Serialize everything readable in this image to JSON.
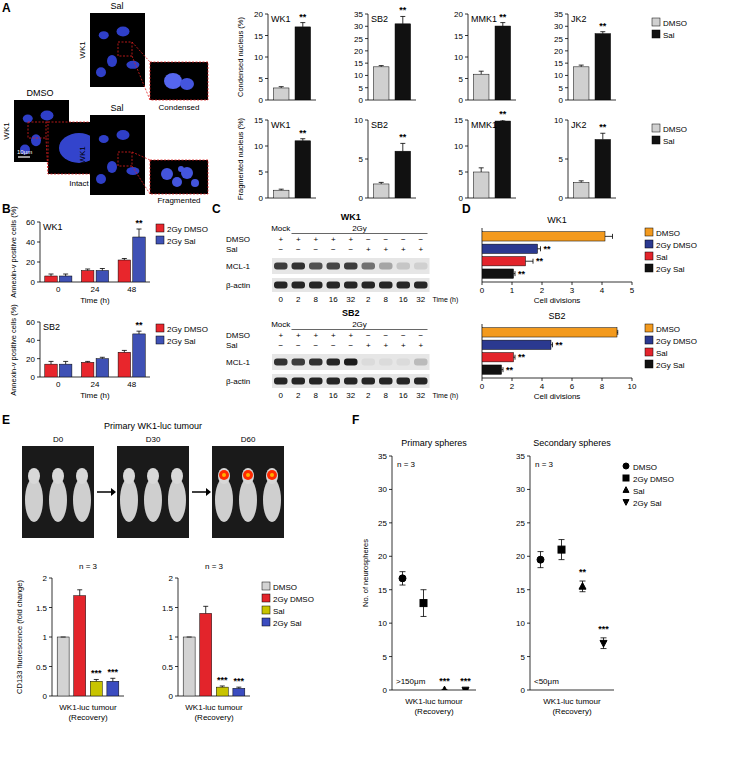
{
  "panel_labels": [
    "A",
    "B",
    "C",
    "D",
    "E",
    "F"
  ],
  "panel_a_images": [
    {
      "condition": "DMSO",
      "cell_line": "WK1",
      "zoom_label": "Intact",
      "scale_bar": "10μm"
    },
    {
      "condition": "Sal",
      "cell_line": "WK1",
      "zoom_label": "Condensed"
    },
    {
      "condition": "Sal",
      "cell_line": "WK1",
      "zoom_label": "Fragmented"
    }
  ],
  "panel_c_blots": [
    {
      "title": "WK1",
      "groups": [
        "Mock",
        "2Gy"
      ],
      "rows": [
        {
          "label": "DMSO",
          "signs": [
            "+",
            "+",
            "+",
            "+",
            "+",
            "−",
            "−",
            "−",
            "−"
          ]
        },
        {
          "label": "Sal",
          "signs": [
            "−",
            "−",
            "−",
            "−",
            "−",
            "+",
            "+",
            "+",
            "+"
          ]
        }
      ],
      "bands": [
        {
          "label": "MCL-1",
          "intensity": [
            0.8,
            0.85,
            0.7,
            0.75,
            0.8,
            0.55,
            0.3,
            0.15,
            0.1
          ]
        },
        {
          "label": "β-actin",
          "intensity": [
            0.9,
            0.9,
            0.9,
            0.9,
            0.9,
            0.9,
            0.9,
            0.9,
            0.9
          ]
        }
      ],
      "times": [
        0,
        2,
        8,
        16,
        32,
        2,
        8,
        16,
        32
      ],
      "time_label": "Time (h)"
    },
    {
      "title": "SB2",
      "groups": [
        "Mock",
        "2Gy"
      ],
      "rows": [
        {
          "label": "DMSO",
          "signs": [
            "+",
            "+",
            "+",
            "+",
            "+",
            "−",
            "−",
            "−",
            "−"
          ]
        },
        {
          "label": "Sal",
          "signs": [
            "−",
            "−",
            "−",
            "−",
            "−",
            "+",
            "+",
            "+",
            "+"
          ]
        }
      ],
      "bands": [
        {
          "label": "MCL-1",
          "intensity": [
            0.85,
            0.8,
            0.85,
            0.9,
            0.95,
            0.05,
            0.05,
            0.05,
            0.2
          ]
        },
        {
          "label": "β-actin",
          "intensity": [
            0.9,
            0.9,
            0.9,
            0.9,
            0.9,
            0.9,
            0.9,
            0.9,
            0.9
          ]
        }
      ],
      "times": [
        0,
        2,
        8,
        16,
        32,
        2,
        8,
        16,
        32
      ],
      "time_label": "Time (h)"
    }
  ],
  "panel_e_images": {
    "title": "Primary WK1-luc tumour",
    "days": [
      "D0",
      "D30",
      "D60"
    ]
  },
  "chart_data": [
    {
      "type": "bar",
      "title": "WK1",
      "y_label": "Condensed nucleus (%)",
      "categories": [
        null
      ],
      "ylim": [
        0,
        20
      ],
      "yticks": [
        0,
        5,
        10,
        15,
        20
      ],
      "series": [
        {
          "color": "#d0d0d0",
          "values": [
            2.8
          ],
          "errors": [
            0.3
          ],
          "significance": [
            null
          ]
        },
        {
          "color": "#111111",
          "values": [
            17
          ],
          "errors": [
            1
          ],
          "significance": [
            "**"
          ]
        }
      ]
    },
    {
      "type": "bar",
      "title": "SB2",
      "categories": [
        null
      ],
      "ylim": [
        0,
        35
      ],
      "yticks": [
        0,
        5,
        10,
        15,
        20,
        25,
        30,
        35
      ],
      "series": [
        {
          "color": "#d0d0d0",
          "values": [
            13.5
          ],
          "errors": [
            0.5
          ],
          "significance": [
            null
          ]
        },
        {
          "color": "#111111",
          "values": [
            31
          ],
          "errors": [
            3
          ],
          "significance": [
            "**"
          ]
        }
      ]
    },
    {
      "type": "bar",
      "title": "MMK1",
      "categories": [
        null
      ],
      "ylim": [
        0,
        20
      ],
      "yticks": [
        0,
        5,
        10,
        15,
        20
      ],
      "series": [
        {
          "color": "#d0d0d0",
          "values": [
            6
          ],
          "errors": [
            0.7
          ],
          "significance": [
            null
          ]
        },
        {
          "color": "#111111",
          "values": [
            17.2
          ],
          "errors": [
            0.8
          ],
          "significance": [
            "**"
          ]
        }
      ]
    },
    {
      "type": "bar",
      "title": "JK2",
      "categories": [
        null
      ],
      "ylim": [
        0,
        35
      ],
      "yticks": [
        0,
        5,
        10,
        15,
        20,
        25,
        30,
        35
      ],
      "legend": "right",
      "series": [
        {
          "name": "DMSO",
          "color": "#d0d0d0",
          "values": [
            13.5
          ],
          "errors": [
            0.7
          ],
          "significance": [
            null
          ]
        },
        {
          "name": "Sal",
          "color": "#111111",
          "values": [
            27
          ],
          "errors": [
            0.8
          ],
          "significance": [
            "**"
          ]
        }
      ]
    },
    {
      "type": "bar",
      "title": "WK1",
      "y_label": "Fragmented nucleus (%)",
      "categories": [
        null
      ],
      "ylim": [
        0,
        15
      ],
      "yticks": [
        0,
        5,
        10,
        15
      ],
      "series": [
        {
          "color": "#d0d0d0",
          "values": [
            1.5
          ],
          "errors": [
            0.2
          ],
          "significance": [
            null
          ]
        },
        {
          "color": "#111111",
          "values": [
            11
          ],
          "errors": [
            0.4
          ],
          "significance": [
            "**"
          ]
        }
      ]
    },
    {
      "type": "bar",
      "title": "SB2",
      "categories": [
        null
      ],
      "ylim": [
        0,
        10
      ],
      "yticks": [
        0,
        5,
        10
      ],
      "series": [
        {
          "color": "#d0d0d0",
          "values": [
            1.8
          ],
          "errors": [
            0.2
          ],
          "significance": [
            null
          ]
        },
        {
          "color": "#111111",
          "values": [
            6
          ],
          "errors": [
            1
          ],
          "significance": [
            "**"
          ]
        }
      ]
    },
    {
      "type": "bar",
      "title": "MMK1",
      "categories": [
        null
      ],
      "ylim": [
        0,
        15
      ],
      "yticks": [
        0,
        5,
        10,
        15
      ],
      "series": [
        {
          "color": "#d0d0d0",
          "values": [
            5
          ],
          "errors": [
            0.8
          ],
          "significance": [
            null
          ]
        },
        {
          "color": "#111111",
          "values": [
            14.8
          ],
          "errors": [
            0.2
          ],
          "significance": [
            "**"
          ]
        }
      ]
    },
    {
      "type": "bar",
      "title": "JK2",
      "categories": [
        null
      ],
      "ylim": [
        0,
        10
      ],
      "yticks": [
        0,
        5,
        10
      ],
      "legend": "right",
      "series": [
        {
          "name": "DMSO",
          "color": "#d0d0d0",
          "values": [
            2
          ],
          "errors": [
            0.2
          ],
          "significance": [
            null
          ]
        },
        {
          "name": "Sal",
          "color": "#111111",
          "values": [
            7.5
          ],
          "errors": [
            0.8
          ],
          "significance": [
            "**"
          ]
        }
      ]
    },
    {
      "type": "bar",
      "title": "WK1",
      "y_label": "Annexin-v positive cells (%)",
      "x_label": "Time (h)",
      "categories": [
        "0",
        "24",
        "48"
      ],
      "ylim": [
        0,
        60
      ],
      "yticks": [
        0,
        20,
        40,
        60
      ],
      "legend": "right",
      "series": [
        {
          "name": "2Gy DMSO",
          "color": "#e8262c",
          "values": [
            6,
            11.5,
            22
          ],
          "errors": [
            2,
            1.5,
            1.5
          ],
          "significance": [
            null,
            null,
            null
          ]
        },
        {
          "name": "2Gy Sal",
          "color": "#3f51b5",
          "values": [
            6,
            11.5,
            45
          ],
          "errors": [
            2,
            2,
            8
          ],
          "significance": [
            null,
            null,
            "**"
          ]
        }
      ]
    },
    {
      "type": "bar",
      "title": "SB2",
      "y_label": "Annexin-v positive cells (%)",
      "x_label": "Time (h)",
      "categories": [
        "0",
        "24",
        "48"
      ],
      "ylim": [
        0,
        60
      ],
      "yticks": [
        0,
        20,
        40,
        60
      ],
      "legend": "right",
      "series": [
        {
          "name": "2Gy DMSO",
          "color": "#e8262c",
          "values": [
            14,
            16,
            27
          ],
          "errors": [
            3,
            1,
            2
          ],
          "significance": [
            null,
            null,
            null
          ]
        },
        {
          "name": "2Gy Sal",
          "color": "#3f51b5",
          "values": [
            14,
            20,
            47
          ],
          "errors": [
            3,
            1.5,
            3
          ],
          "significance": [
            null,
            null,
            "**"
          ]
        }
      ]
    },
    {
      "type": "bar",
      "orientation": "horizontal",
      "title": "WK1",
      "x_label": "Cell divisions",
      "categories": [
        null
      ],
      "xlim": [
        0,
        5
      ],
      "xticks": [
        0,
        1,
        2,
        3,
        4,
        5
      ],
      "legend": "right",
      "series": [
        {
          "name": "DMSO",
          "color": "#f39a1e",
          "values": [
            4.1
          ],
          "errors": [
            0.25
          ],
          "significance": [
            null
          ]
        },
        {
          "name": "2Gy DMSO",
          "color": "#2b3990",
          "values": [
            1.85
          ],
          "errors": [
            0.1
          ],
          "significance": [
            "**"
          ]
        },
        {
          "name": "Sal",
          "color": "#e3242b",
          "values": [
            1.45
          ],
          "errors": [
            0.25
          ],
          "significance": [
            "**"
          ]
        },
        {
          "name": "2Gy Sal",
          "color": "#111111",
          "values": [
            1.05
          ],
          "errors": [
            0.05
          ],
          "significance": [
            "**"
          ]
        }
      ]
    },
    {
      "type": "bar",
      "orientation": "horizontal",
      "title": "SB2",
      "x_label": "Cell divisions",
      "categories": [
        null
      ],
      "xlim": [
        0,
        10
      ],
      "xticks": [
        0,
        2,
        4,
        6,
        8,
        10
      ],
      "legend": "right",
      "series": [
        {
          "name": "DMSO",
          "color": "#f39a1e",
          "values": [
            9
          ],
          "errors": [
            0.05
          ],
          "significance": [
            null
          ]
        },
        {
          "name": "2Gy DMSO",
          "color": "#2b3990",
          "values": [
            4.6
          ],
          "errors": [
            0.1
          ],
          "significance": [
            "**"
          ]
        },
        {
          "name": "Sal",
          "color": "#e3242b",
          "values": [
            2.1
          ],
          "errors": [
            0.1
          ],
          "significance": [
            "**"
          ]
        },
        {
          "name": "2Gy Sal",
          "color": "#111111",
          "values": [
            1.3
          ],
          "errors": [
            0.1
          ],
          "significance": [
            "**"
          ]
        }
      ]
    },
    {
      "type": "bar",
      "y_label": "CD133 fluorescence (fold change)",
      "x_label": "WK1-luc tumour\n(Recovery)",
      "annotations": [
        "n = 3"
      ],
      "categories": [
        null
      ],
      "ylim": [
        0,
        2
      ],
      "yticks": [
        0,
        0.5,
        1,
        1.5,
        2
      ],
      "series": [
        {
          "color": "#d3d3d3",
          "values": [
            1
          ],
          "errors": [
            0
          ],
          "significance": [
            null
          ]
        },
        {
          "color": "#e3242b",
          "values": [
            1.7
          ],
          "errors": [
            0.1
          ],
          "significance": [
            null
          ]
        },
        {
          "color": "#c8c400",
          "values": [
            0.25
          ],
          "errors": [
            0.03
          ],
          "significance": [
            "***"
          ]
        },
        {
          "color": "#3b4cc0",
          "values": [
            0.25
          ],
          "errors": [
            0.05
          ],
          "significance": [
            "***"
          ]
        }
      ]
    },
    {
      "type": "bar",
      "x_label": "WK1-luc tumour\n(Recovery)",
      "annotations": [
        "n = 3"
      ],
      "categories": [
        null
      ],
      "ylim": [
        0,
        2
      ],
      "yticks": [
        0,
        0.5,
        1,
        1.5,
        2
      ],
      "legend": "right",
      "series": [
        {
          "name": "DMSO",
          "color": "#d3d3d3",
          "values": [
            1
          ],
          "errors": [
            0
          ],
          "significance": [
            null
          ]
        },
        {
          "name": "2Gy DMSO",
          "color": "#e3242b",
          "values": [
            1.4
          ],
          "errors": [
            0.12
          ],
          "significance": [
            null
          ]
        },
        {
          "name": "Sal",
          "color": "#c8c400",
          "values": [
            0.15
          ],
          "errors": [
            0.02
          ],
          "significance": [
            "***"
          ]
        },
        {
          "name": "2Gy Sal",
          "color": "#3b4cc0",
          "values": [
            0.13
          ],
          "errors": [
            0.02
          ],
          "significance": [
            "***"
          ]
        }
      ]
    },
    {
      "type": "scatter",
      "title": "Primary spheres",
      "y_label": "No. of neurospheres",
      "x_label": "WK1-luc tumour\n(Recovery)",
      "annotations": [
        "n = 3",
        ">150μm"
      ],
      "categories": [
        null
      ],
      "ylim": [
        0,
        35
      ],
      "yticks": [
        0,
        5,
        10,
        15,
        20,
        25,
        30,
        35
      ],
      "series": [
        {
          "marker": "circle",
          "color": "#000000",
          "values": [
            16.7
          ],
          "errors": [
            1
          ],
          "significance": [
            null
          ]
        },
        {
          "marker": "square",
          "color": "#000000",
          "values": [
            13
          ],
          "errors": [
            2
          ],
          "significance": [
            null
          ]
        },
        {
          "marker": "triangle",
          "color": "#000000",
          "values": [
            0
          ],
          "errors": [
            0
          ],
          "significance": [
            "***"
          ]
        },
        {
          "marker": "triangle-down",
          "color": "#000000",
          "values": [
            0
          ],
          "errors": [
            0
          ],
          "significance": [
            "***"
          ]
        }
      ]
    },
    {
      "type": "scatter",
      "title": "Secondary spheres",
      "x_label": "WK1-luc tumour\n(Recovery)",
      "annotations": [
        "n = 3",
        "<50μm"
      ],
      "categories": [
        null
      ],
      "ylim": [
        0,
        35
      ],
      "yticks": [
        0,
        5,
        10,
        15,
        20,
        25,
        30,
        35
      ],
      "legend": "right",
      "series": [
        {
          "name": "DMSO",
          "marker": "circle",
          "color": "#000000",
          "values": [
            19.5
          ],
          "errors": [
            1.2
          ],
          "significance": [
            null
          ]
        },
        {
          "name": "2Gy DMSO",
          "marker": "square",
          "color": "#000000",
          "values": [
            21
          ],
          "errors": [
            1.5
          ],
          "significance": [
            null
          ]
        },
        {
          "name": "Sal",
          "marker": "triangle",
          "color": "#000000",
          "values": [
            15.5
          ],
          "errors": [
            0.8
          ],
          "significance": [
            "**"
          ]
        },
        {
          "name": "2Gy Sal",
          "marker": "triangle-down",
          "color": "#000000",
          "values": [
            7
          ],
          "errors": [
            0.8
          ],
          "significance": [
            "***"
          ]
        }
      ]
    }
  ]
}
